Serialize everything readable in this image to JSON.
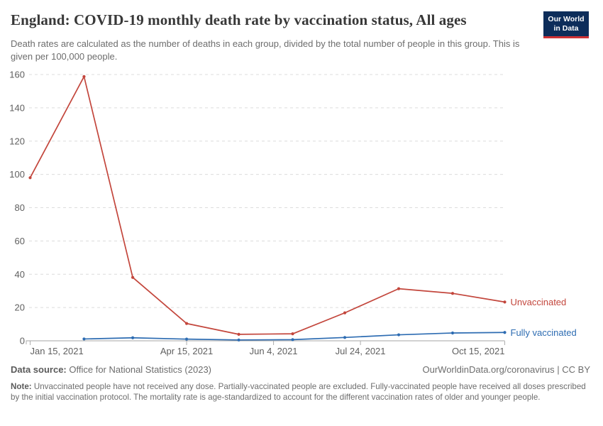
{
  "header": {
    "title": "England: COVID-19 monthly death rate by vaccination status, All ages",
    "subtitle": "Death rates are calculated as the number of deaths in each group, divided by the total number of people in this group. This is given per 100,000 people.",
    "logo": {
      "line1": "Our World",
      "line2": "in Data",
      "bg_color": "#0d2d5a",
      "stripe_color": "#cd3235"
    }
  },
  "chart_data": {
    "type": "line",
    "title": "England: COVID-19 monthly death rate by vaccination status, All ages",
    "xlabel": "",
    "ylabel": "",
    "ylim": [
      0,
      160
    ],
    "y_ticks": [
      0,
      20,
      40,
      60,
      80,
      100,
      120,
      140,
      160
    ],
    "x_tick_labels": [
      "Jan 15, 2021",
      "Apr 15, 2021",
      "Jun 4, 2021",
      "Jul 24, 2021",
      "Oct 15, 2021"
    ],
    "x_tick_days": [
      0,
      90,
      140,
      190,
      273
    ],
    "xlim_days": [
      0,
      273
    ],
    "grid": "horizontal dashed",
    "legend_position": "end-of-line labels",
    "colors": {
      "grid": "#dcdcdc",
      "axis": "#a5a5a5",
      "tick": "#adadad",
      "tick_text": "#5f5f5f"
    },
    "series": [
      {
        "name": "Unvaccinated",
        "color": "#c3463c",
        "dates": [
          "Jan 15, 2021",
          "Feb 15, 2021",
          "Mar 15, 2021",
          "Apr 15, 2021",
          "May 15, 2021",
          "Jun 15, 2021",
          "Jul 15, 2021",
          "Aug 15, 2021",
          "Sep 15, 2021",
          "Oct 15, 2021"
        ],
        "x_days": [
          0,
          31,
          59,
          90,
          120,
          151,
          181,
          212,
          243,
          273
        ],
        "values": [
          98,
          158.8,
          38.1,
          10.4,
          3.9,
          4.2,
          16.8,
          31.3,
          28.5,
          23.3
        ]
      },
      {
        "name": "Fully vaccinated",
        "color": "#2d6cb2",
        "dates": [
          "Feb 15, 2021",
          "Mar 15, 2021",
          "Apr 15, 2021",
          "May 15, 2021",
          "Jun 15, 2021",
          "Jul 15, 2021",
          "Aug 15, 2021",
          "Sep 15, 2021",
          "Oct 15, 2021"
        ],
        "x_days": [
          31,
          59,
          90,
          120,
          151,
          181,
          212,
          243,
          273
        ],
        "values": [
          1.1,
          1.8,
          1.0,
          0.5,
          0.7,
          2.0,
          3.6,
          4.7,
          5.0
        ]
      }
    ]
  },
  "footer": {
    "source_label": "Data source:",
    "source_value": "Office for National Statistics (2023)",
    "attribution": "OurWorldinData.org/coronavirus | CC BY",
    "note_label": "Note:",
    "note_text": "Unvaccinated people have not received any dose. Partially-vaccinated people are excluded. Fully-vaccinated people have received all doses prescribed by the initial vaccination protocol. The mortality rate is age-standardized to account for the different vaccination rates of older and younger people."
  }
}
